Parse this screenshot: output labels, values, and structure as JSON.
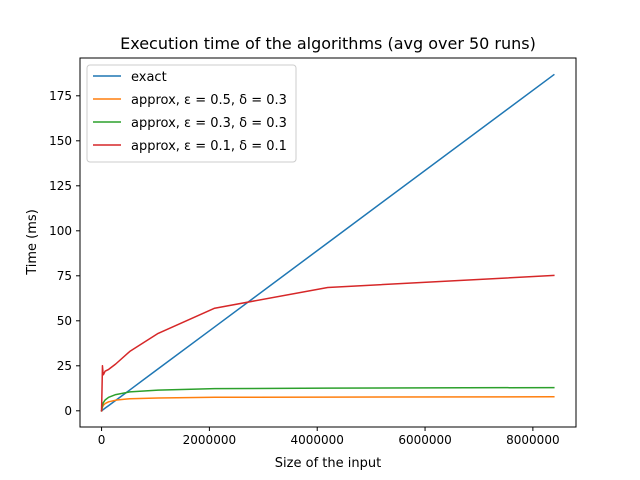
{
  "chart_data": {
    "type": "line",
    "title": "Execution time of the algorithms (avg over 50 runs)",
    "xlabel": "Size of the input",
    "ylabel": "Time (ms)",
    "xlim": [
      -400000,
      8800000
    ],
    "ylim": [
      -9,
      196
    ],
    "xticks": [
      0,
      2000000,
      4000000,
      6000000,
      8000000
    ],
    "xtick_labels": [
      "0",
      "2000000",
      "4000000",
      "6000000",
      "8000000"
    ],
    "yticks": [
      0,
      25,
      50,
      75,
      100,
      125,
      150,
      175
    ],
    "ytick_labels": [
      "0",
      "25",
      "50",
      "75",
      "100",
      "125",
      "150",
      "175"
    ],
    "grid": false,
    "legend_position": "top-left",
    "series": [
      {
        "name": "exact",
        "color": "#1f77b4",
        "x": [
          0,
          65536,
          131072,
          262144,
          524288,
          1048576,
          2097152,
          4194304,
          8388608
        ],
        "y": [
          0,
          1.5,
          2.9,
          5.8,
          11.6,
          23.3,
          46.6,
          93.3,
          186.7
        ]
      },
      {
        "name": "approx, ε = 0.5, δ = 0.3",
        "color": "#ff7f0e",
        "x": [
          0,
          16384,
          32768,
          65536,
          131072,
          262144,
          524288,
          1048576,
          2097152,
          4194304,
          8388608
        ],
        "y": [
          0,
          2.0,
          3.0,
          4.0,
          5.0,
          5.9,
          6.7,
          7.1,
          7.5,
          7.6,
          7.8
        ]
      },
      {
        "name": "approx, ε = 0.3, δ = 0.3",
        "color": "#2ca02c",
        "x": [
          0,
          16384,
          32768,
          65536,
          131072,
          262144,
          524288,
          1048576,
          2097152,
          4194304,
          8388608
        ],
        "y": [
          0,
          3.0,
          4.5,
          6.0,
          7.5,
          9.0,
          10.5,
          11.5,
          12.3,
          12.6,
          12.9
        ]
      },
      {
        "name": "approx, ε = 0.1, δ = 0.1",
        "color": "#d62728",
        "x": [
          0,
          8192,
          16384,
          24576,
          32768,
          49152,
          65536,
          131072,
          262144,
          524288,
          1048576,
          2097152,
          4194304,
          8388608
        ],
        "y": [
          0,
          12,
          25,
          22,
          20,
          21,
          22,
          23,
          26,
          33,
          43,
          57,
          68.5,
          75.2
        ]
      }
    ]
  }
}
